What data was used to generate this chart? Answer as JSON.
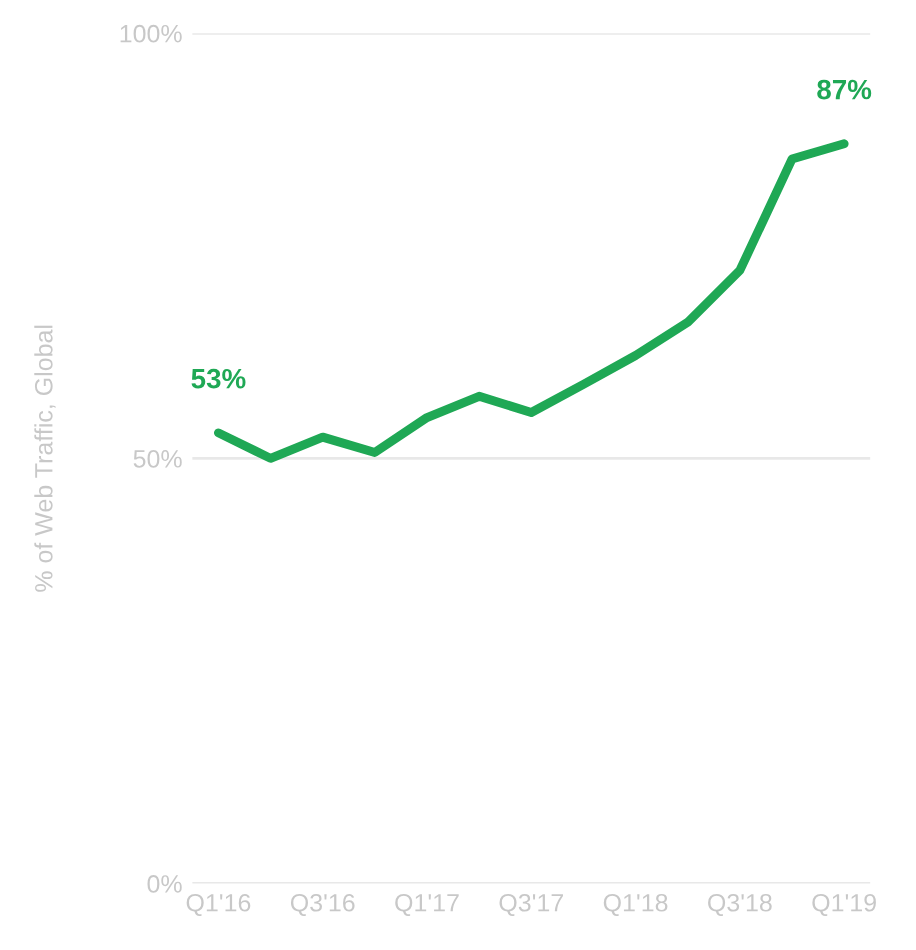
{
  "chart_data": {
    "type": "line",
    "ylabel": "% of Web Traffic, Global",
    "categories": [
      "Q1'16",
      null,
      "Q3'16",
      null,
      "Q1'17",
      null,
      "Q3'17",
      null,
      "Q1'18",
      null,
      "Q3'18",
      null,
      "Q1'19"
    ],
    "series": [
      {
        "color": "#1fa855",
        "values": [
          53,
          50,
          52.5,
          50.7,
          54.8,
          57.3,
          55.4,
          58.7,
          62.1,
          66,
          72.1,
          85.2,
          87
        ],
        "value_labels": [
          "53%",
          null,
          null,
          null,
          null,
          null,
          null,
          null,
          null,
          null,
          null,
          null,
          "87%"
        ]
      }
    ],
    "ylim": [
      0,
      100
    ],
    "yticks": [
      {
        "value": 0,
        "label": "0%"
      },
      {
        "value": 50,
        "label": "50%"
      },
      {
        "value": 100,
        "label": "100%"
      }
    ],
    "grid": "y",
    "marker": "none",
    "line_style": "solid"
  }
}
